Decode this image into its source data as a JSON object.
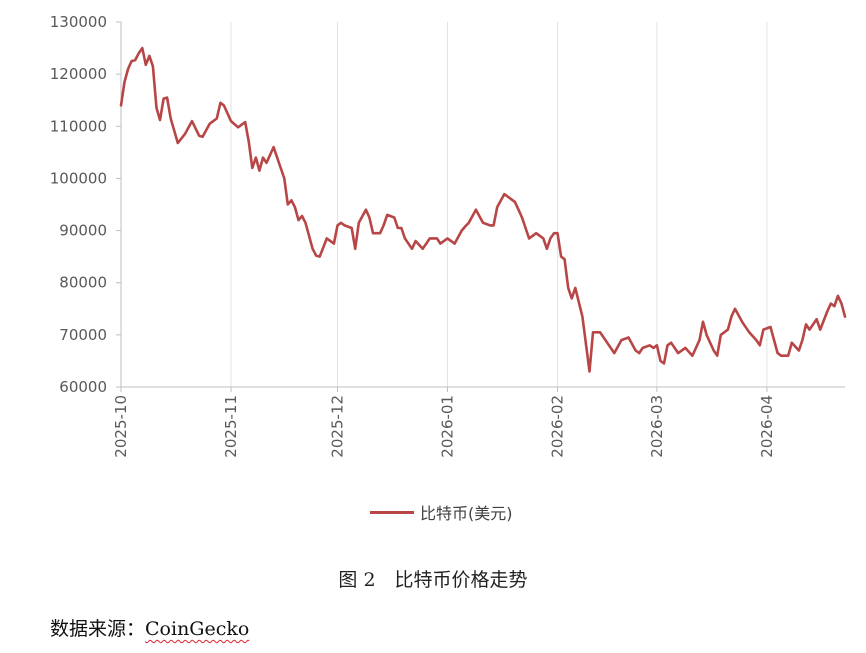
{
  "chart_data": {
    "type": "line",
    "title": "",
    "xlabel": "",
    "ylabel": "",
    "ylim": [
      60000,
      130000
    ],
    "y_ticks": [
      60000,
      70000,
      80000,
      90000,
      100000,
      110000,
      120000,
      130000
    ],
    "x_ticks": [
      "2025-10",
      "2025-11",
      "2025-12",
      "2026-01",
      "2026-02",
      "2026-03",
      "2026-04"
    ],
    "grid": "vertical",
    "legend": "bottom",
    "series": [
      {
        "name": "比特币(美元)",
        "color": "#b84646",
        "x": [
          "2025-10-01",
          "2025-10-02",
          "2025-10-03",
          "2025-10-04",
          "2025-10-05",
          "2025-10-06",
          "2025-10-07",
          "2025-10-08",
          "2025-10-09",
          "2025-10-10",
          "2025-10-11",
          "2025-10-12",
          "2025-10-13",
          "2025-10-14",
          "2025-10-15",
          "2025-10-17",
          "2025-10-19",
          "2025-10-21",
          "2025-10-23",
          "2025-10-24",
          "2025-10-26",
          "2025-10-28",
          "2025-10-29",
          "2025-10-30",
          "2025-11-01",
          "2025-11-03",
          "2025-11-05",
          "2025-11-06",
          "2025-11-07",
          "2025-11-08",
          "2025-11-09",
          "2025-11-10",
          "2025-11-11",
          "2025-11-13",
          "2025-11-15",
          "2025-11-16",
          "2025-11-17",
          "2025-11-18",
          "2025-11-19",
          "2025-11-20",
          "2025-11-21",
          "2025-11-22",
          "2025-11-24",
          "2025-11-25",
          "2025-11-26",
          "2025-11-28",
          "2025-11-30",
          "2025-12-01",
          "2025-12-02",
          "2025-12-03",
          "2025-12-05",
          "2025-12-06",
          "2025-12-07",
          "2025-12-09",
          "2025-12-10",
          "2025-12-11",
          "2025-12-13",
          "2025-12-14",
          "2025-12-15",
          "2025-12-17",
          "2025-12-18",
          "2025-12-19",
          "2025-12-20",
          "2025-12-22",
          "2025-12-23",
          "2025-12-25",
          "2025-12-27",
          "2025-12-29",
          "2025-12-30",
          "2026-01-01",
          "2026-01-03",
          "2026-01-05",
          "2026-01-06",
          "2026-01-07",
          "2026-01-09",
          "2026-01-11",
          "2026-01-13",
          "2026-01-14",
          "2026-01-15",
          "2026-01-17",
          "2026-01-19",
          "2026-01-20",
          "2026-01-21",
          "2026-01-22",
          "2026-01-24",
          "2026-01-26",
          "2026-01-27",
          "2026-01-28",
          "2026-01-29",
          "2026-01-30",
          "2026-01-31",
          "2026-02-01",
          "2026-02-02",
          "2026-02-03",
          "2026-02-04",
          "2026-02-05",
          "2026-02-06",
          "2026-02-08",
          "2026-02-10",
          "2026-02-11",
          "2026-02-13",
          "2026-02-15",
          "2026-02-17",
          "2026-02-19",
          "2026-02-21",
          "2026-02-23",
          "2026-02-24",
          "2026-02-25",
          "2026-02-27",
          "2026-02-28",
          "2026-03-01",
          "2026-03-02",
          "2026-03-03",
          "2026-03-04",
          "2026-03-05",
          "2026-03-07",
          "2026-03-09",
          "2026-03-11",
          "2026-03-13",
          "2026-03-14",
          "2026-03-15",
          "2026-03-17",
          "2026-03-18",
          "2026-03-19",
          "2026-03-21",
          "2026-03-22",
          "2026-03-23",
          "2026-03-25",
          "2026-03-27",
          "2026-03-29",
          "2026-03-30",
          "2026-03-31",
          "2026-04-02",
          "2026-04-04",
          "2026-04-05",
          "2026-04-07",
          "2026-04-08",
          "2026-04-10",
          "2026-04-11",
          "2026-04-12",
          "2026-04-13",
          "2026-04-14",
          "2026-04-15",
          "2026-04-16",
          "2026-04-18",
          "2026-04-19",
          "2026-04-20",
          "2026-04-21",
          "2026-04-22",
          "2026-04-23"
        ],
        "values": [
          114000,
          118500,
          121000,
          122500,
          122700,
          124000,
          125000,
          121800,
          123500,
          121500,
          113500,
          111200,
          115300,
          115500,
          111500,
          106800,
          108500,
          111000,
          108200,
          108000,
          110500,
          111500,
          114500,
          114000,
          111000,
          109800,
          110800,
          107000,
          102000,
          104000,
          101500,
          104000,
          103000,
          106000,
          102000,
          100000,
          95000,
          95800,
          94500,
          92000,
          92800,
          91500,
          86500,
          85200,
          85000,
          88500,
          87500,
          91000,
          91500,
          91000,
          90500,
          86500,
          91500,
          94000,
          92500,
          89500,
          89500,
          91000,
          93000,
          92500,
          90500,
          90500,
          88500,
          86500,
          88000,
          86500,
          88500,
          88500,
          87500,
          88500,
          87500,
          90000,
          90800,
          91500,
          94000,
          91500,
          91000,
          91000,
          94500,
          97000,
          96000,
          95500,
          94000,
          92500,
          88500,
          89500,
          89000,
          88500,
          86500,
          88500,
          89500,
          89500,
          85000,
          84500,
          79000,
          77000,
          79000,
          73500,
          63000,
          70500,
          70500,
          68500,
          66500,
          69000,
          69500,
          67000,
          66500,
          67500,
          68000,
          67500,
          68000,
          65000,
          64500,
          68000,
          68500,
          66500,
          67500,
          66000,
          69000,
          72500,
          70000,
          67000,
          66000,
          70000,
          71000,
          73500,
          75000,
          72500,
          70500,
          69000,
          68000,
          71000,
          71500,
          66500,
          66000,
          66000,
          68500,
          67000,
          69000,
          72000,
          71000,
          72000,
          73000,
          71000,
          74500,
          76000,
          75500,
          77500,
          76000,
          73500
        ],
        "x_num": [
          0,
          1,
          2,
          3,
          4,
          5,
          6,
          7,
          8,
          9,
          10,
          11,
          12,
          13,
          14,
          16,
          18,
          20,
          22,
          23,
          25,
          27,
          28,
          29,
          31,
          33,
          35,
          36,
          37,
          38,
          39,
          40,
          41,
          43,
          45,
          46,
          47,
          48,
          49,
          50,
          51,
          52,
          54,
          55,
          56,
          58,
          60,
          61,
          62,
          63,
          65,
          66,
          67,
          69,
          70,
          71,
          73,
          74,
          75,
          77,
          78,
          79,
          80,
          82,
          83,
          85,
          87,
          89,
          90,
          92,
          94,
          96,
          97,
          98,
          100,
          102,
          104,
          105,
          106,
          108,
          110,
          111,
          112,
          113,
          115,
          117,
          118,
          119,
          120,
          121,
          122,
          123,
          124,
          125,
          126,
          127,
          128,
          130,
          132,
          133,
          135,
          137,
          139,
          141,
          143,
          145,
          146,
          147,
          149,
          150,
          151,
          152,
          153,
          154,
          155,
          157,
          159,
          161,
          163,
          164,
          165,
          167,
          168,
          169,
          171,
          172,
          173,
          175,
          177,
          179,
          180,
          181,
          183,
          185,
          186,
          188,
          189,
          191,
          192,
          193,
          194,
          195,
          196,
          197,
          199,
          200,
          201,
          202,
          203,
          204
        ]
      }
    ]
  },
  "caption": "图 2　比特币价格走势",
  "source": {
    "prefix": "数据来源：",
    "brand": "CoinGecko"
  }
}
